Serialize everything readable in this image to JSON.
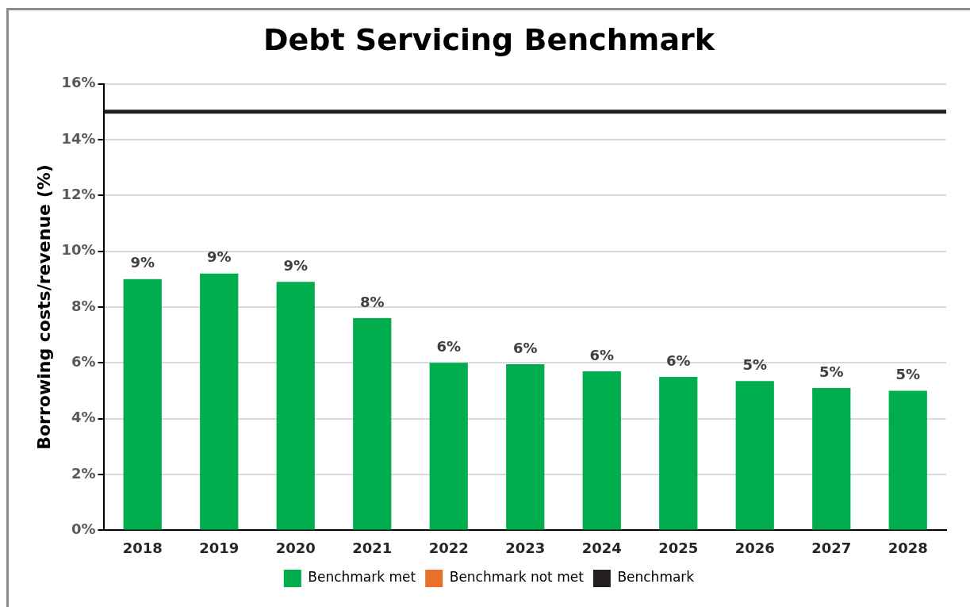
{
  "chart_data": {
    "type": "bar",
    "title": "Debt Servicing Benchmark",
    "ylabel": "Borrowing costs/revenue (%)",
    "categories": [
      "2018",
      "2019",
      "2020",
      "2021",
      "2022",
      "2023",
      "2024",
      "2025",
      "2026",
      "2027",
      "2028"
    ],
    "series": [
      {
        "name": "Benchmark met",
        "color": "#00ae4d",
        "values": [
          9.0,
          9.2,
          8.9,
          7.6,
          6.0,
          5.95,
          5.7,
          5.5,
          5.35,
          5.1,
          5.0
        ],
        "value_labels": [
          "9%",
          "9%",
          "9%",
          "8%",
          "6%",
          "6%",
          "6%",
          "6%",
          "5%",
          "5%",
          "5%"
        ]
      },
      {
        "name": "Benchmark not met",
        "color": "#e8702a",
        "values": [
          null,
          null,
          null,
          null,
          null,
          null,
          null,
          null,
          null,
          null,
          null
        ]
      }
    ],
    "ref_lines": [
      {
        "axis": "y",
        "value": 15,
        "label": "Benchmark",
        "color": "#231f20",
        "line_style": "solid"
      }
    ],
    "ylim": [
      0,
      16
    ],
    "yticks": [
      {
        "value": 0,
        "label": "0%"
      },
      {
        "value": 2,
        "label": "2%"
      },
      {
        "value": 4,
        "label": "4%"
      },
      {
        "value": 6,
        "label": "6%"
      },
      {
        "value": 8,
        "label": "8%"
      },
      {
        "value": 10,
        "label": "10%"
      },
      {
        "value": 12,
        "label": "12%"
      },
      {
        "value": 14,
        "label": "14%"
      },
      {
        "value": 16,
        "label": "16%"
      }
    ],
    "grid": "y",
    "legend": "bottom"
  }
}
